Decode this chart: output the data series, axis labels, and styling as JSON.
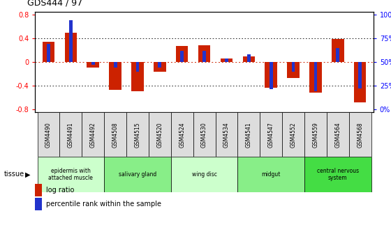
{
  "title": "GDS444 / 97",
  "samples": [
    "GSM4490",
    "GSM4491",
    "GSM4492",
    "GSM4508",
    "GSM4515",
    "GSM4520",
    "GSM4524",
    "GSM4530",
    "GSM4534",
    "GSM4541",
    "GSM4547",
    "GSM4552",
    "GSM4559",
    "GSM4564",
    "GSM4568"
  ],
  "log_ratios": [
    0.34,
    0.5,
    -0.09,
    -0.47,
    -0.49,
    -0.17,
    0.27,
    0.28,
    0.06,
    0.1,
    -0.43,
    -0.27,
    -0.52,
    0.39,
    -0.68
  ],
  "percentile_ranks": [
    0.69,
    0.94,
    0.47,
    0.44,
    0.4,
    0.44,
    0.62,
    0.62,
    0.54,
    0.58,
    0.21,
    0.4,
    0.19,
    0.65,
    0.22
  ],
  "tissue_groups": [
    {
      "label": "epidermis with\nattached muscle",
      "start": 0,
      "end": 3,
      "color": "#ccffcc"
    },
    {
      "label": "salivary gland",
      "start": 3,
      "end": 6,
      "color": "#88ee88"
    },
    {
      "label": "wing disc",
      "start": 6,
      "end": 9,
      "color": "#ccffcc"
    },
    {
      "label": "midgut",
      "start": 9,
      "end": 12,
      "color": "#88ee88"
    },
    {
      "label": "central nervous\nsystem",
      "start": 12,
      "end": 15,
      "color": "#44dd44"
    }
  ],
  "ylim": [
    -0.85,
    0.85
  ],
  "y_ticks_left": [
    -0.8,
    -0.4,
    0.0,
    0.4,
    0.8
  ],
  "y_ticks_right": [
    0,
    25,
    50,
    75,
    100
  ],
  "bar_color": "#cc2200",
  "percentile_color": "#2233cc",
  "zero_line_color": "#cc2200",
  "grid_color": "#000000",
  "background_color": "#ffffff",
  "sample_box_color": "#dddddd"
}
